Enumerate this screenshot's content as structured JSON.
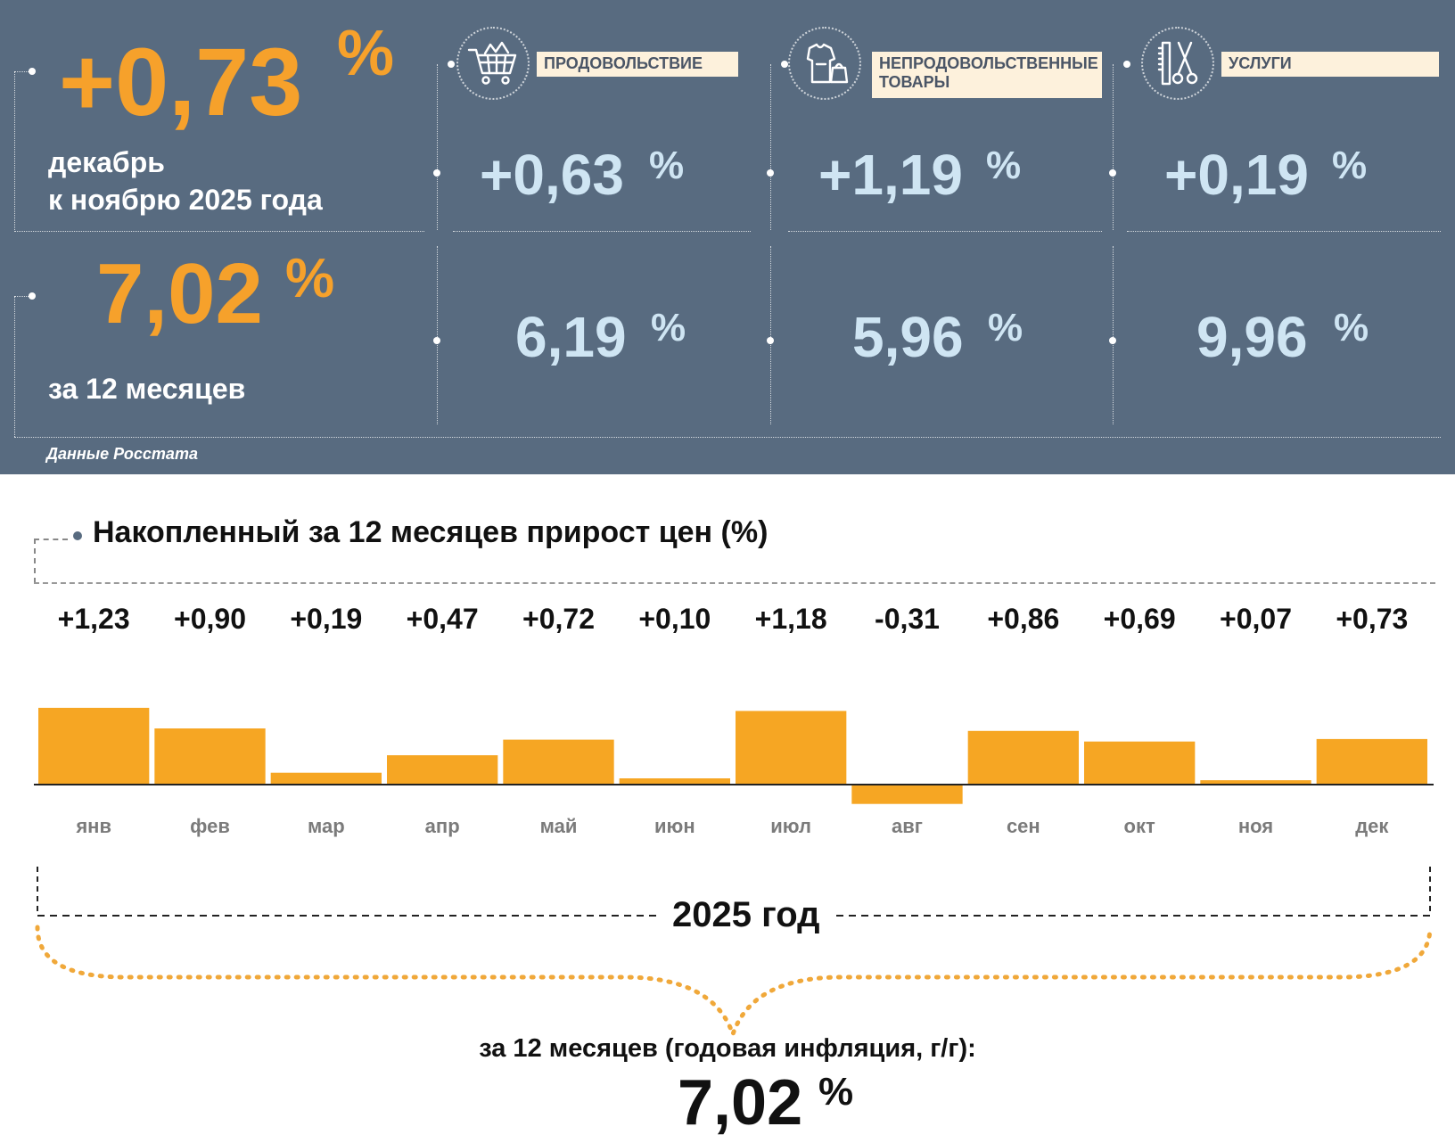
{
  "header": {
    "monthly_value": "+0,73",
    "monthly_pct": "%",
    "monthly_label_line1": "декабрь",
    "monthly_label_line2": "к ноябрю 2025 года",
    "annual_value": "7,02",
    "annual_pct": "%",
    "annual_label": "за 12 месяцев",
    "source": "Данные Росстата"
  },
  "categories": [
    {
      "label_line1": "ПРОДОВОЛЬСТВИЕ",
      "label_line2": "",
      "icon": "shopping-cart-icon",
      "monthly": "+0,63",
      "annual": "6,19",
      "pct": "%"
    },
    {
      "label_line1": "НЕПРОДОВОЛЬСТВЕННЫЕ",
      "label_line2": "ТОВАРЫ",
      "icon": "clothes-bag-icon",
      "monthly": "+1,19",
      "annual": "5,96",
      "pct": "%"
    },
    {
      "label_line1": "УСЛУГИ",
      "label_line2": "",
      "icon": "comb-scissors-icon",
      "monthly": "+0,19",
      "annual": "9,96",
      "pct": "%"
    }
  ],
  "chart_title": "Накопленный за 12 месяцев прирост цен (%)",
  "chart_data": {
    "type": "bar",
    "categories": [
      "янв",
      "фев",
      "мар",
      "апр",
      "май",
      "июн",
      "июл",
      "авг",
      "сен",
      "окт",
      "ноя",
      "дек"
    ],
    "values": [
      1.23,
      0.9,
      0.19,
      0.47,
      0.72,
      0.1,
      1.18,
      -0.31,
      0.86,
      0.69,
      0.07,
      0.73
    ],
    "value_labels": [
      "+1,23",
      "+0,90",
      "+0,19",
      "+0,47",
      "+0,72",
      "+0,10",
      "+1,18",
      "-0,31",
      "+0,86",
      "+0,69",
      "+0,07",
      "+0,73"
    ],
    "bar_color": "#f6a623",
    "grid": false
  },
  "year_label": "2025 год",
  "annual_summary": {
    "label": "за 12 месяцев (годовая инфляция, г/г):",
    "value": "7,02",
    "pct": "%"
  },
  "colors": {
    "panel_bg": "#586b80",
    "orange": "#f6a12b",
    "light_blue": "#cfe5f3",
    "label_bg": "#fdf1dc"
  }
}
